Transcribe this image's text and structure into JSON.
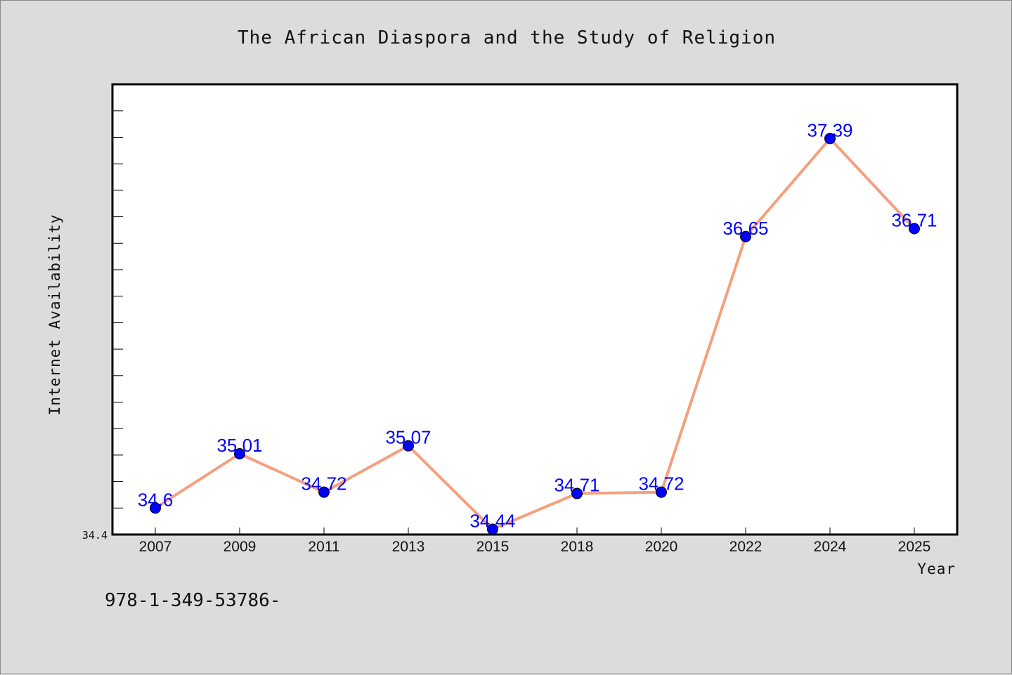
{
  "chart_data": {
    "type": "line",
    "title": "The African Diaspora and the Study of Religion",
    "xlabel": "Year",
    "ylabel": "Internet Availability",
    "categories": [
      "2007",
      "2009",
      "2011",
      "2013",
      "2015",
      "2018",
      "2020",
      "2022",
      "2024",
      "2025"
    ],
    "values": [
      34.6,
      35.01,
      34.72,
      35.07,
      34.44,
      34.71,
      34.72,
      36.65,
      37.39,
      36.71
    ],
    "data_labels": [
      "34.6",
      "35.01",
      "34.72",
      "35.07",
      "34.44",
      "34.71",
      "34.72",
      "36.65",
      "37.39",
      "36.71"
    ],
    "ytick_labels": [
      "34.4"
    ],
    "ylim": [
      34.4,
      37.8
    ],
    "grid": false,
    "line_color": "#f4a07f",
    "marker_color": "#0000ff",
    "label_color": "#0000ff"
  },
  "footnote": "978-1-349-53786-"
}
